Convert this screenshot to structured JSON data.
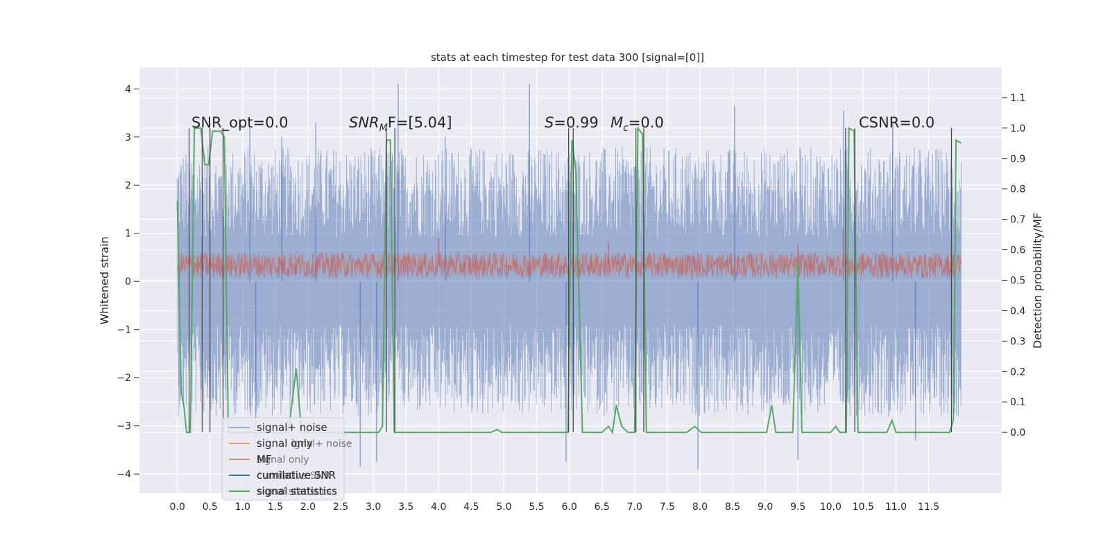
{
  "chart_data": {
    "type": "line",
    "title": "stats at each timestep for test data 300 [signal=[0]]",
    "xlabel": "",
    "ylabel": "Whitened strain",
    "ylabel_right": "Detection probability/MF",
    "xlim": [
      -0.58,
      12.62
    ],
    "ylim": [
      -4.4,
      4.45
    ],
    "ylim_right": [
      -0.2,
      1.2
    ],
    "x_ticks": [
      "0.0",
      "0.5",
      "1.0",
      "1.5",
      "2.0",
      "2.5",
      "3.0",
      "3.5",
      "4.0",
      "4.5",
      "5.0",
      "5.5",
      "6.0",
      "6.5",
      "7.0",
      "7.5",
      "8.0",
      "8.5",
      "9.0",
      "9.5",
      "10.0",
      "10.5",
      "11.0",
      "11.5"
    ],
    "y_ticks": [
      "4",
      "3",
      "2",
      "1",
      "0",
      "−1",
      "−2",
      "−3",
      "−4"
    ],
    "y_ticks_right": [
      "1.1",
      "1.0",
      "0.9",
      "0.8",
      "0.7",
      "0.6",
      "0.5",
      "0.4",
      "0.3",
      "0.2",
      "0.1",
      "0.0"
    ],
    "grid": true,
    "background": "#eaeaf2",
    "colors": {
      "signal_noise": "#4c72b0",
      "signal_only": "#dd8452",
      "mf": "#c44e52",
      "cumulative_snr": "#4c72b0",
      "statistics": "#55a868",
      "markers": "#4a4a4a"
    },
    "annotations": {
      "snr_opt_prefix": "SNR_opt=",
      "snr_opt_value": "0.0",
      "snr_mf_base": "SNR",
      "snr_mf_sub": "M",
      "snr_mf_rest": "F=[5.04]",
      "s_label": "S",
      "s_value": "=0.99",
      "mc_label": "M",
      "mc_sub": "c",
      "mc_value": "=0.0",
      "csnr_prefix": "CSNR=",
      "csnr_value": "0.0"
    },
    "legend": {
      "position": "lower-left",
      "entries": [
        "signal+ noise",
        "signal only",
        "MF",
        "cumilative SNR",
        "signal statistics"
      ],
      "ghost_entries": [
        "ignal+ noise",
        "signal only",
        "cumilative SNR",
        "signal statistics"
      ]
    },
    "series": [
      {
        "name": "signal+ noise",
        "kind": "noise",
        "t_start": 0.0,
        "t_end": 12.0,
        "envelope": [
          -2.8,
          2.8
        ],
        "extremes": [
          [
            1.11,
            3.2
          ],
          [
            1.6,
            3.0
          ],
          [
            2.12,
            3.3
          ],
          [
            3.38,
            4.1
          ],
          [
            4.1,
            3.0
          ],
          [
            5.39,
            4.1
          ],
          [
            8.53,
            3.65
          ],
          [
            10.2,
            3.55
          ],
          [
            10.95,
            3.3
          ],
          [
            2.8,
            -3.85
          ],
          [
            3.05,
            -3.75
          ],
          [
            5.95,
            -3.75
          ],
          [
            7.97,
            -3.9
          ],
          [
            9.5,
            -3.7
          ],
          [
            1.2,
            -3.4
          ],
          [
            11.3,
            -3.3
          ]
        ]
      },
      {
        "name": "signal only",
        "kind": "noise",
        "t_start": 0.0,
        "t_end": 12.0,
        "envelope": [
          0.1,
          0.6
        ],
        "extremes": []
      },
      {
        "name": "MF",
        "kind": "noise",
        "t_start": 0.0,
        "t_end": 12.0,
        "envelope": [
          0.05,
          0.62
        ],
        "extremes": [
          [
            4.0,
            0.9
          ],
          [
            6.6,
            0.82
          ],
          [
            9.5,
            0.8
          ],
          [
            10.2,
            1.05
          ],
          [
            11.85,
            0.78
          ]
        ]
      },
      {
        "name": "signal statistics",
        "kind": "line",
        "axis": "right",
        "points": [
          [
            0.0,
            0.76
          ],
          [
            0.06,
            0.13
          ],
          [
            0.1,
            0.09
          ],
          [
            0.14,
            0.0
          ],
          [
            0.2,
            0.0
          ],
          [
            0.26,
            1.0
          ],
          [
            0.32,
            1.0
          ],
          [
            0.36,
            1.0
          ],
          [
            0.42,
            0.88
          ],
          [
            0.48,
            0.88
          ],
          [
            0.54,
            0.99
          ],
          [
            0.6,
            0.99
          ],
          [
            0.66,
            0.99
          ],
          [
            0.72,
            0.97
          ],
          [
            0.78,
            0.0
          ],
          [
            1.7,
            0.0
          ],
          [
            1.82,
            0.21
          ],
          [
            1.9,
            0.0
          ],
          [
            3.08,
            0.0
          ],
          [
            3.14,
            0.02
          ],
          [
            3.2,
            0.96
          ],
          [
            3.26,
            0.96
          ],
          [
            3.32,
            0.0
          ],
          [
            4.8,
            0.0
          ],
          [
            4.9,
            0.01
          ],
          [
            4.96,
            0.0
          ],
          [
            5.98,
            0.0
          ],
          [
            6.04,
            0.96
          ],
          [
            6.1,
            0.86
          ],
          [
            6.2,
            0.0
          ],
          [
            6.5,
            0.0
          ],
          [
            6.6,
            0.02
          ],
          [
            6.66,
            0.0
          ],
          [
            6.72,
            0.09
          ],
          [
            6.8,
            0.02
          ],
          [
            6.9,
            0.0
          ],
          [
            7.0,
            0.0
          ],
          [
            7.05,
            1.0
          ],
          [
            7.12,
            0.98
          ],
          [
            7.18,
            0.0
          ],
          [
            7.8,
            0.0
          ],
          [
            7.92,
            0.02
          ],
          [
            8.02,
            0.0
          ],
          [
            9.02,
            0.0
          ],
          [
            9.1,
            0.09
          ],
          [
            9.16,
            0.0
          ],
          [
            9.42,
            0.0
          ],
          [
            9.5,
            0.56
          ],
          [
            9.56,
            0.0
          ],
          [
            10.0,
            0.0
          ],
          [
            10.08,
            0.02
          ],
          [
            10.14,
            0.0
          ],
          [
            10.24,
            0.0
          ],
          [
            10.28,
            1.0
          ],
          [
            10.36,
            0.99
          ],
          [
            10.42,
            0.0
          ],
          [
            10.86,
            0.0
          ],
          [
            10.94,
            0.04
          ],
          [
            11.0,
            0.0
          ],
          [
            11.82,
            0.0
          ],
          [
            11.88,
            0.04
          ],
          [
            11.92,
            0.96
          ],
          [
            12.0,
            0.95
          ]
        ]
      }
    ],
    "markers": [
      0.18,
      0.38,
      0.5,
      0.7,
      3.2,
      3.33,
      5.99,
      6.06,
      7.02,
      7.14,
      10.23,
      10.37,
      11.85
    ]
  }
}
